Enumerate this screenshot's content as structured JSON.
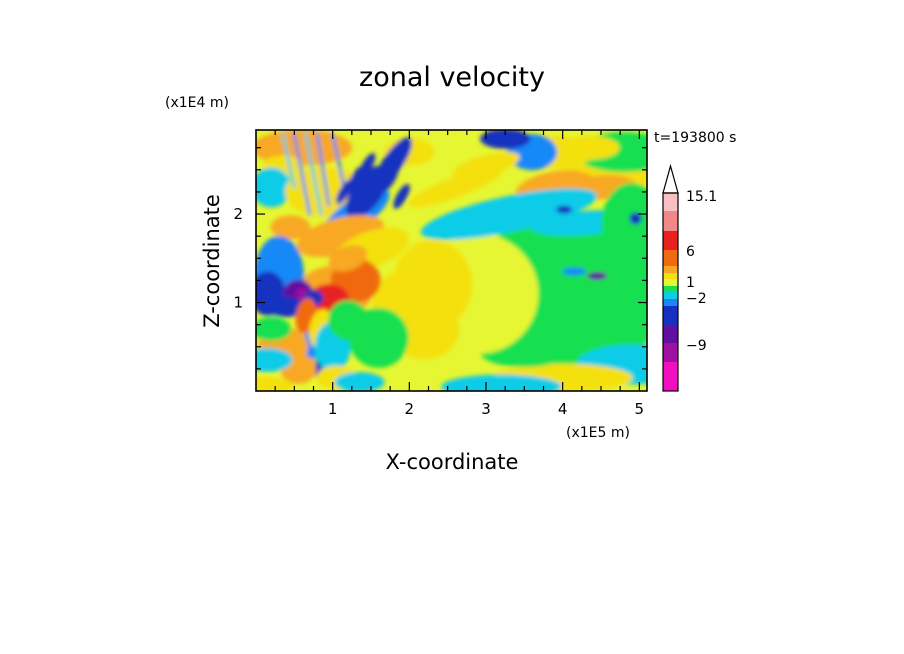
{
  "chart_data": {
    "type": "heatmap",
    "title": "zonal velocity",
    "xlabel": "X-coordinate",
    "ylabel": "Z-coordinate",
    "x_multiplier": "(x1E5 m)",
    "y_multiplier": "(x1E4 m)",
    "time_label": "t=193800 s",
    "xlim": [
      0,
      5.1
    ],
    "ylim": [
      0,
      2.95
    ],
    "x_ticks": [
      "1",
      "2",
      "3",
      "4",
      "5"
    ],
    "y_ticks": [
      "1",
      "2"
    ],
    "colorbar": {
      "labels": [
        "15.1",
        "6",
        "1",
        "−2",
        "−9"
      ],
      "colors": [
        "#ffffff",
        "#f8c0c0",
        "#f08888",
        "#e82020",
        "#f06a10",
        "#f8a820",
        "#f4e010",
        "#e6f632",
        "#18e050",
        "#10cce8",
        "#1888f8",
        "#1830c0",
        "#6010a0",
        "#a010a0",
        "#f010c0"
      ],
      "extends_max": true
    },
    "field_description": "contour-filled zonal velocity field; strong positive core near x=1, z=1 and negative pockets near x=0.6"
  }
}
